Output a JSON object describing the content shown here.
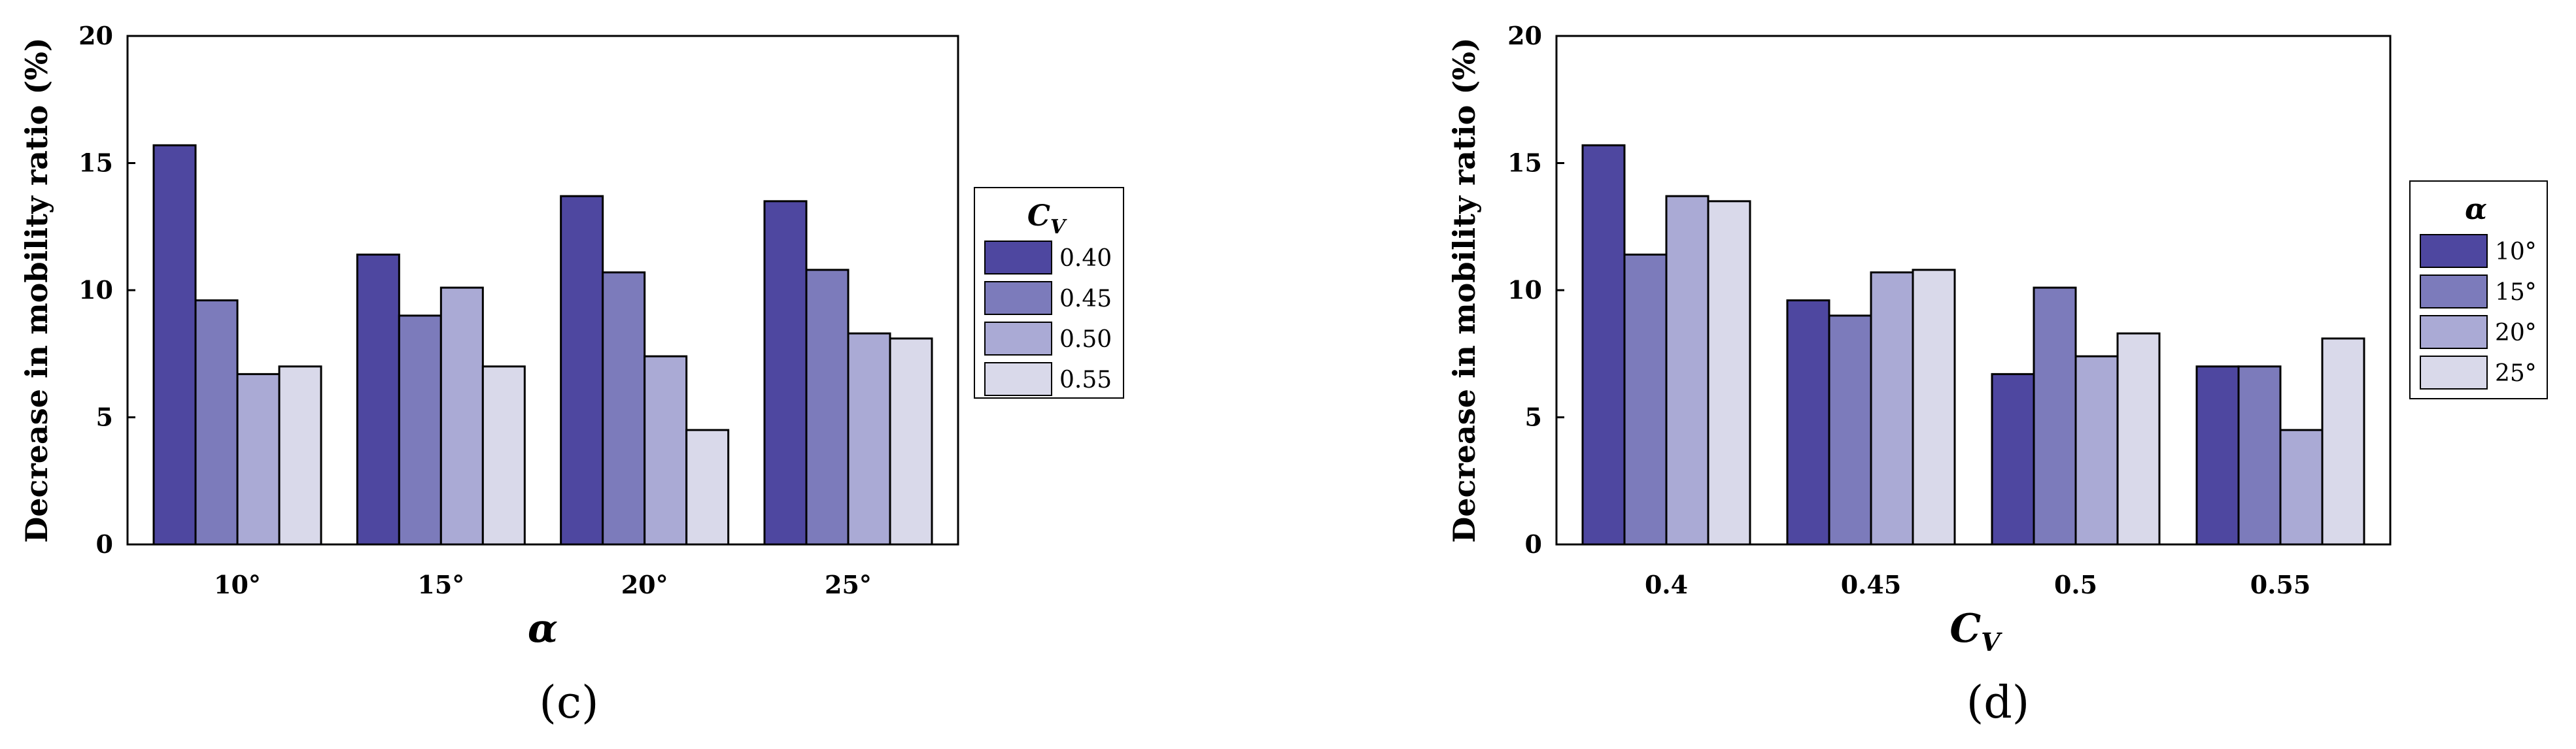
{
  "chart_data": [
    {
      "type": "bar",
      "caption": "(c)",
      "xlabel": "α",
      "ylabel": "Decrease in mobility ratio (%)",
      "ylim": [
        0,
        20
      ],
      "yticks": [
        "0",
        "5",
        "10",
        "15",
        "20"
      ],
      "categories": [
        "10°",
        "15°",
        "20°",
        "25°"
      ],
      "legend_title": "C",
      "legend_title_sub": "V",
      "legend_position": "right",
      "series": [
        {
          "name": "0.40",
          "values": [
            15.7,
            11.4,
            13.7,
            13.5
          ]
        },
        {
          "name": "0.45",
          "values": [
            9.6,
            9.0,
            10.7,
            10.8
          ]
        },
        {
          "name": "0.50",
          "values": [
            6.7,
            10.1,
            7.4,
            8.3
          ]
        },
        {
          "name": "0.55",
          "values": [
            7.0,
            7.0,
            4.5,
            8.1
          ]
        }
      ]
    },
    {
      "type": "bar",
      "caption": "(d)",
      "xlabel": "C",
      "xlabel_sub": "V",
      "ylabel": "Decrease in mobility ratio (%)",
      "ylim": [
        0,
        20
      ],
      "yticks": [
        "0",
        "5",
        "10",
        "15",
        "20"
      ],
      "categories": [
        "0.4",
        "0.45",
        "0.5",
        "0.55"
      ],
      "legend_title": "α",
      "legend_position": "right",
      "series": [
        {
          "name": "10°",
          "values": [
            15.7,
            9.6,
            6.7,
            7.0
          ]
        },
        {
          "name": "15°",
          "values": [
            11.4,
            9.0,
            10.1,
            7.0
          ]
        },
        {
          "name": "20°",
          "values": [
            13.7,
            10.7,
            7.4,
            4.5
          ]
        },
        {
          "name": "25°",
          "values": [
            13.5,
            10.8,
            8.3,
            8.1
          ]
        }
      ]
    }
  ],
  "colors": [
    "#4e47a0",
    "#7c7bbb",
    "#aaaad5",
    "#d9d9ea"
  ]
}
